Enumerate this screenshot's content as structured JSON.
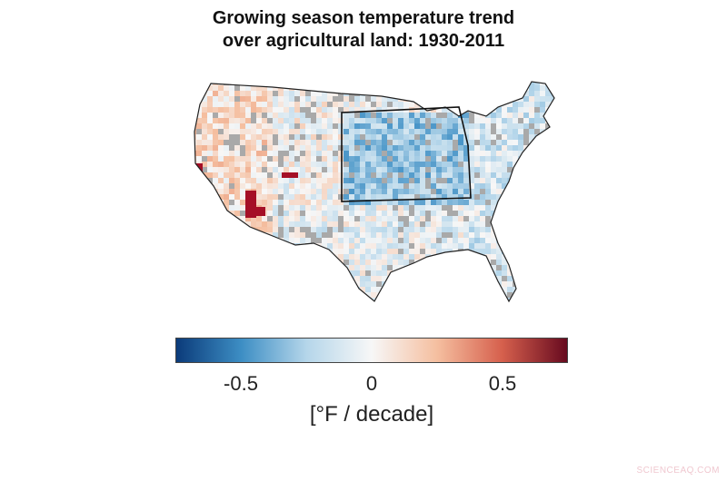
{
  "title_line1": "Growing season temperature trend",
  "title_line2": "over agricultural land: 1930-2011",
  "colorbar": {
    "range": [
      -0.75,
      0.75
    ],
    "ticks": [
      {
        "value": -0.5,
        "label": "-0.5"
      },
      {
        "value": 0,
        "label": "0"
      },
      {
        "value": 0.5,
        "label": "0.5"
      }
    ],
    "unit_label": "[°F / decade]",
    "colors": [
      "#0b3b7a",
      "#3d8ec4",
      "#b5d6ea",
      "#f7f7f7",
      "#f5bfa0",
      "#d6604d",
      "#670a1f"
    ]
  },
  "map": {
    "no_data_color": "#a9a9a9"
  },
  "watermark": "SCIENCEAQ.COM"
}
